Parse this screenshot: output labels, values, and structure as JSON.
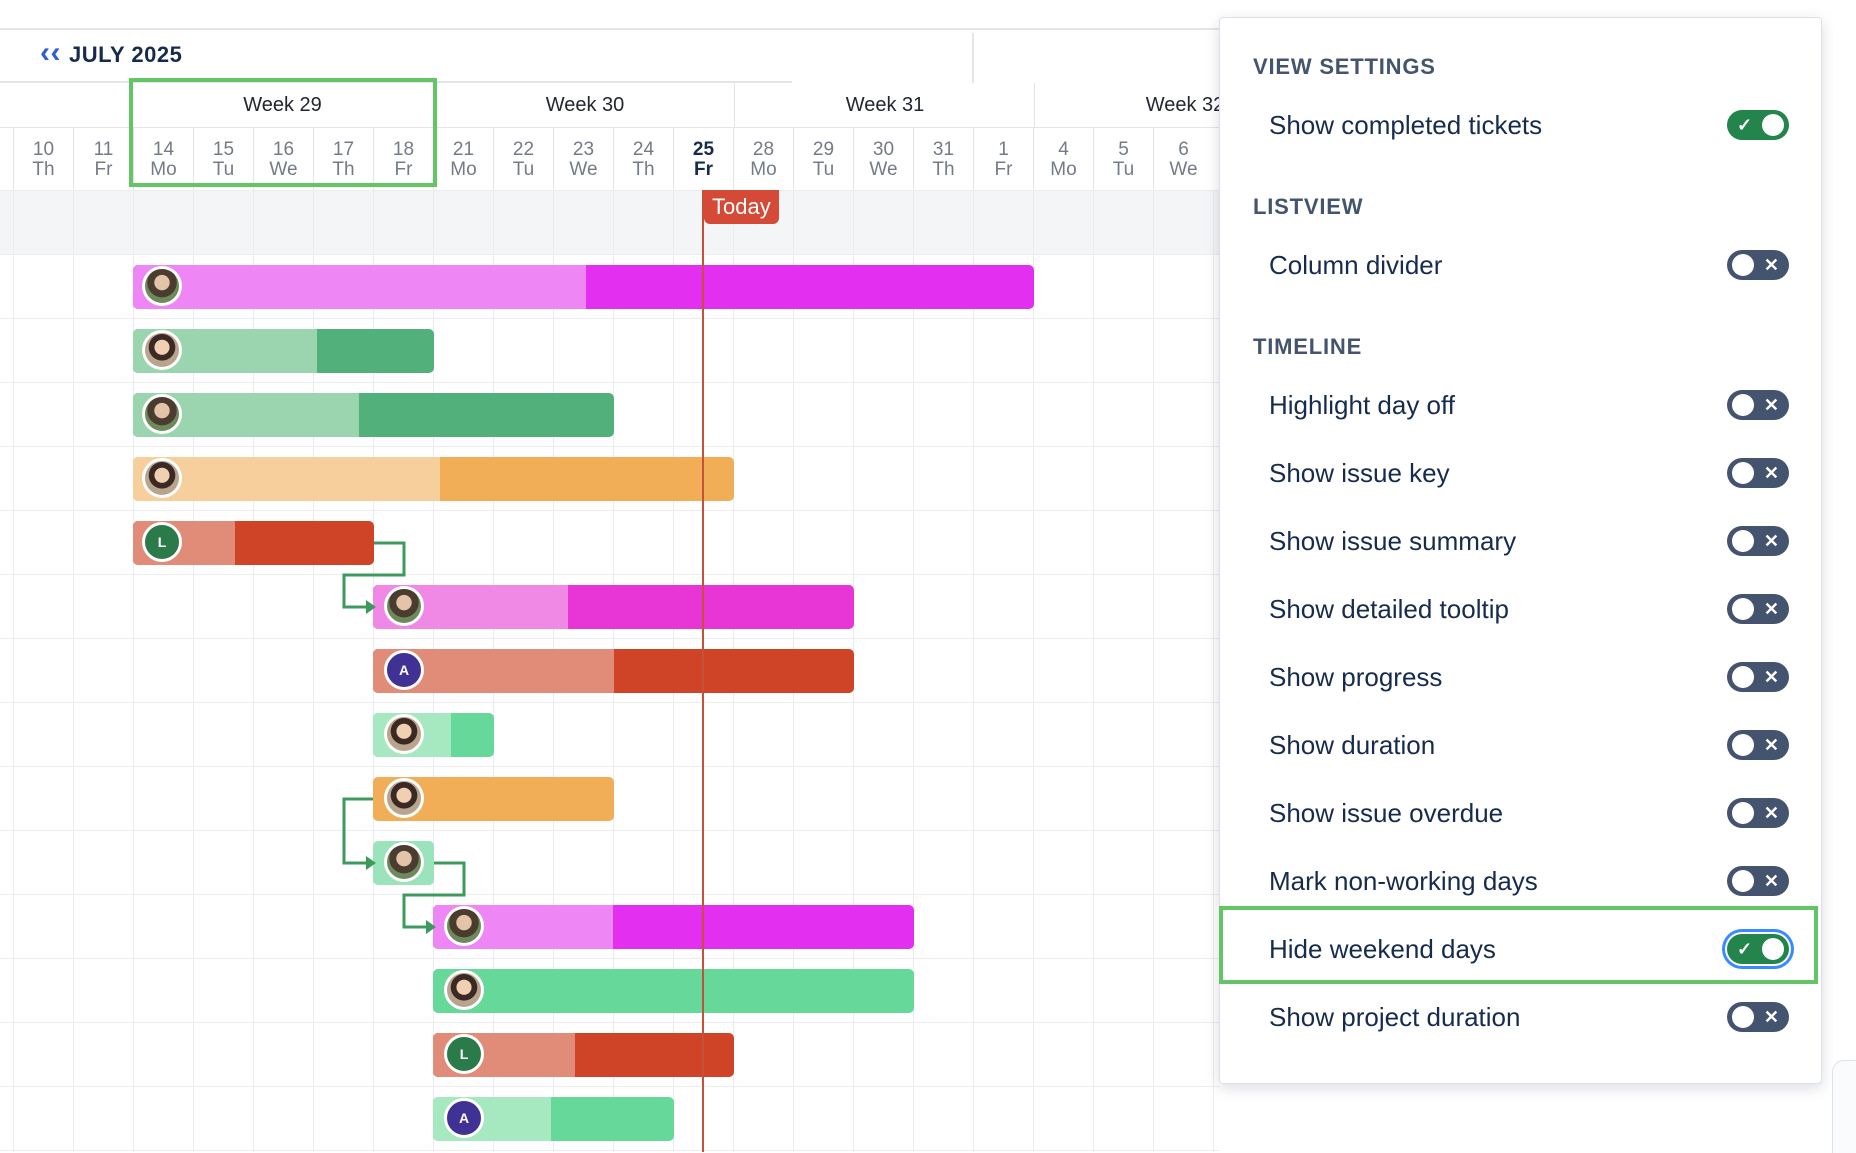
{
  "timeline": {
    "month_label": "JULY 2025",
    "today_label": "Today",
    "weeks": [
      {
        "label": "Week 29"
      },
      {
        "label": "Week 30"
      },
      {
        "label": "Week 31"
      },
      {
        "label": "Week 32"
      }
    ],
    "days": [
      {
        "num": "10",
        "dow": "Th"
      },
      {
        "num": "11",
        "dow": "Fr"
      },
      {
        "num": "14",
        "dow": "Mo"
      },
      {
        "num": "15",
        "dow": "Tu"
      },
      {
        "num": "16",
        "dow": "We"
      },
      {
        "num": "17",
        "dow": "Th"
      },
      {
        "num": "18",
        "dow": "Fr"
      },
      {
        "num": "21",
        "dow": "Mo"
      },
      {
        "num": "22",
        "dow": "Tu"
      },
      {
        "num": "23",
        "dow": "We"
      },
      {
        "num": "24",
        "dow": "Th"
      },
      {
        "num": "25",
        "dow": "Fr"
      },
      {
        "num": "28",
        "dow": "Mo"
      },
      {
        "num": "29",
        "dow": "Tu"
      },
      {
        "num": "30",
        "dow": "We"
      },
      {
        "num": "31",
        "dow": "Th"
      },
      {
        "num": "1",
        "dow": "Fr"
      },
      {
        "num": "4",
        "dow": "Mo"
      },
      {
        "num": "5",
        "dow": "Tu"
      },
      {
        "num": "6",
        "dow": "We"
      }
    ],
    "avatar_initials": {
      "l": "L",
      "a": "A"
    }
  },
  "panel": {
    "sections": {
      "view": "VIEW SETTINGS",
      "listview": "LISTVIEW",
      "timeline": "TIMELINE"
    },
    "options": [
      {
        "label": "Show completed tickets",
        "on": true
      },
      {
        "label": "Column divider",
        "on": false
      },
      {
        "label": "Highlight day off",
        "on": false
      },
      {
        "label": "Show issue key",
        "on": false
      },
      {
        "label": "Show issue summary",
        "on": false
      },
      {
        "label": "Show detailed tooltip",
        "on": false
      },
      {
        "label": "Show progress",
        "on": false
      },
      {
        "label": "Show duration",
        "on": false
      },
      {
        "label": "Show issue overdue",
        "on": false
      },
      {
        "label": "Mark non-working days",
        "on": false
      },
      {
        "label": "Hide weekend days",
        "on": true
      },
      {
        "label": "Show project duration",
        "on": false
      }
    ]
  },
  "colors": {
    "magenta": "#e22ff0",
    "green": "#52b07b",
    "orange": "#f1ae57",
    "red": "#cf4427",
    "mint": "#66d99a",
    "highlight": "#64c567",
    "today": "#d44a37"
  }
}
